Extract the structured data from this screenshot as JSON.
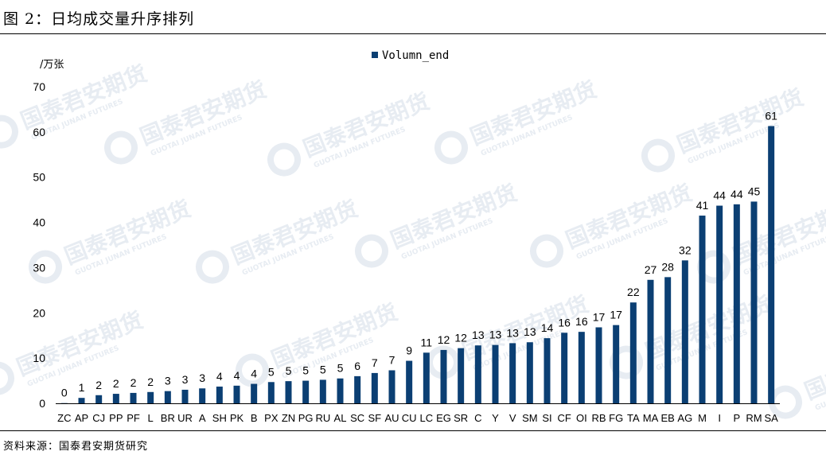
{
  "figure_title": "图 2：日均成交量升序排列",
  "source_note": "资料来源：国泰君安期货研究",
  "watermark": {
    "name": "国泰君安期货",
    "sub": "GUOTAI JUNAN FUTURES"
  },
  "colors": {
    "bar": "#0b3f73",
    "axis": "#000000",
    "watermark": "#dfe6ee"
  },
  "chart_data": {
    "type": "bar",
    "ylabel": "/万张",
    "ylim": [
      0,
      70
    ],
    "yticks": [
      0,
      10,
      20,
      30,
      40,
      50,
      60,
      70
    ],
    "grid": false,
    "legend_position": "top-center",
    "categories": [
      "ZC",
      "AP",
      "CJ",
      "PP",
      "PF",
      "L",
      "BR",
      "UR",
      "A",
      "SH",
      "PK",
      "B",
      "PX",
      "ZN",
      "PG",
      "RU",
      "AL",
      "SC",
      "SF",
      "AU",
      "CU",
      "LC",
      "EG",
      "SR",
      "C",
      "Y",
      "V",
      "SM",
      "SI",
      "CF",
      "OI",
      "RB",
      "FG",
      "TA",
      "MA",
      "EB",
      "AG",
      "M",
      "I",
      "P",
      "RM",
      "SA"
    ],
    "series": [
      {
        "name": "Volumn_end",
        "color": "#0b3f73",
        "values": [
          0.05,
          1.2,
          1.8,
          2.1,
          2.3,
          2.5,
          2.7,
          3.0,
          3.3,
          3.7,
          3.9,
          4.3,
          4.7,
          4.9,
          5.0,
          5.2,
          5.5,
          6.0,
          6.7,
          7.3,
          9.4,
          11.2,
          11.8,
          12.2,
          12.8,
          12.9,
          13.3,
          13.5,
          14.4,
          15.6,
          15.8,
          16.8,
          17.3,
          22.3,
          27.3,
          27.9,
          31.6,
          41.5,
          43.7,
          44.0,
          44.6,
          61.3
        ],
        "labels": [
          "0",
          "1",
          "2",
          "2",
          "2",
          "2",
          "3",
          "3",
          "3",
          "4",
          "4",
          "4",
          "5",
          "5",
          "5",
          "5",
          "5",
          "6",
          "7",
          "7",
          "9",
          "11",
          "12",
          "12",
          "13",
          "13",
          "13",
          "13",
          "14",
          "16",
          "16",
          "17",
          "17",
          "22",
          "27",
          "28",
          "32",
          "41",
          "44",
          "44",
          "45",
          "61"
        ]
      }
    ]
  }
}
